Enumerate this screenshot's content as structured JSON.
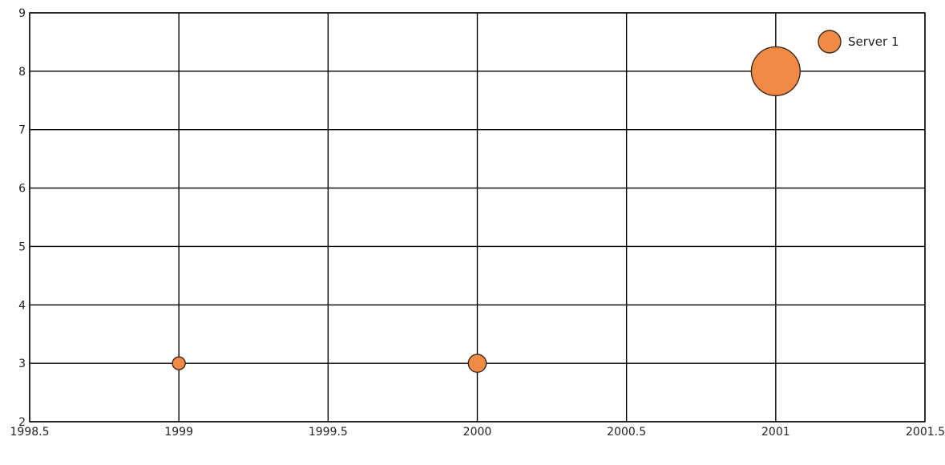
{
  "chart_data": {
    "type": "scatter",
    "variant": "bubble",
    "title": "",
    "xlabel": "",
    "ylabel": "",
    "xlim": [
      1998.5,
      2001.5
    ],
    "ylim": [
      2,
      9
    ],
    "x_ticks": [
      "1998.5",
      "1999",
      "1999.5",
      "2000",
      "2000.5",
      "2001",
      "2001.5"
    ],
    "y_ticks": [
      "2",
      "3",
      "4",
      "5",
      "6",
      "7",
      "8",
      "9"
    ],
    "grid": true,
    "legend_position": "top-right",
    "series": [
      {
        "name": "Server 1",
        "color": "#f08a45",
        "points": [
          {
            "x": 1999,
            "y": 3,
            "size": 1
          },
          {
            "x": 2000,
            "y": 3,
            "size": 1.4
          },
          {
            "x": 2001,
            "y": 8,
            "size": 3.8
          }
        ]
      }
    ]
  }
}
